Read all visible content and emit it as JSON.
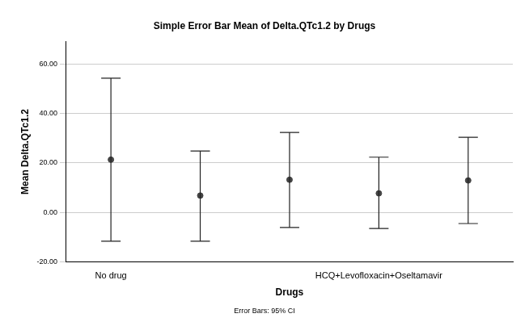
{
  "chart_data": {
    "type": "errorbar",
    "title": "Simple Error Bar Mean of Delta.QTc1.2 by Drugs",
    "x_label": "Drugs",
    "y_label": "Mean Delta.QTc1.2",
    "annotation": "Error Bars: 95% CI",
    "categories": [
      "No drug",
      null,
      null,
      "HCQ+Levofloxacin+Oseltamavir",
      null
    ],
    "values": [
      21.3,
      6.8,
      13.2,
      7.7,
      12.9
    ],
    "ci_lower": [
      -11.6,
      -11.6,
      -6.1,
      -6.5,
      -4.5
    ],
    "ci_upper": [
      54.2,
      24.8,
      32.3,
      22.3,
      30.3
    ],
    "color": "#444444",
    "marker": "circle",
    "ylim": [
      -20,
      69
    ],
    "yticks": [
      {
        "value": -20,
        "label": "-20.00"
      },
      {
        "value": 0,
        "label": "0.00"
      },
      {
        "value": 20,
        "label": "20.00"
      },
      {
        "value": 40,
        "label": "40.00"
      },
      {
        "value": 60,
        "label": "60.00"
      }
    ],
    "grid": true
  }
}
